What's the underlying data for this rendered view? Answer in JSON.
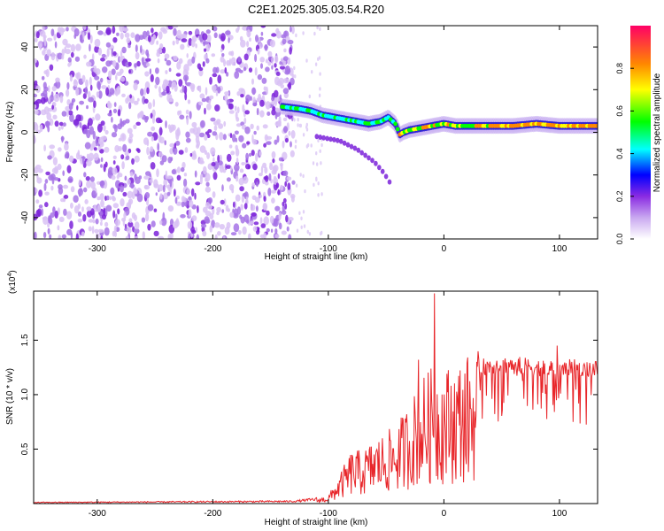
{
  "title": "C2E1.2025.305.03.54.R20",
  "chart_data": [
    {
      "type": "heatmap",
      "xlabel": "Height of straight line (km)",
      "ylabel": "Frequency (Hz)",
      "xlim": [
        -355,
        133
      ],
      "ylim": [
        -50,
        50
      ],
      "xticks": [
        -300,
        -200,
        -100,
        0,
        100
      ],
      "xticklabels": [
        "-300",
        "-200",
        "-100",
        "0",
        "100"
      ],
      "yticks": [
        -40,
        -20,
        0,
        20,
        40
      ],
      "yticklabels": [
        "-40",
        "-20",
        "0",
        "20",
        "40"
      ],
      "colorbar": {
        "label": "Normalized spectral amplitude",
        "range": [
          0,
          1
        ],
        "ticks": [
          0.0,
          0.2,
          0.4,
          0.6,
          0.8
        ],
        "ticklabels": [
          "0.0",
          "0.2",
          "0.4",
          "0.6",
          "0.8"
        ]
      },
      "trace": {
        "x": [
          -140,
          -125,
          -115,
          -105,
          -95,
          -85,
          -75,
          -65,
          -55,
          -48,
          -42,
          -38,
          -35,
          -30,
          -20,
          -10,
          0,
          10,
          20,
          40,
          60,
          80,
          100,
          120,
          133
        ],
        "y": [
          12,
          11,
          10,
          8,
          7,
          6,
          5,
          4,
          5,
          7,
          4,
          -1,
          0,
          1,
          2,
          3,
          4,
          3,
          3,
          3,
          3,
          4,
          3,
          3,
          3
        ]
      },
      "branch": {
        "x": [
          -110,
          -90,
          -75,
          -60,
          -52,
          -45
        ],
        "y": [
          -2,
          -4,
          -8,
          -14,
          -19,
          -25
        ]
      },
      "noise_region_x": [
        -355,
        -130
      ],
      "grid": false
    },
    {
      "type": "line",
      "xlabel": "Height of straight line (km)",
      "ylabel": "SNR (10 * v/v)",
      "y_multiplier": "(x10",
      "y_multiplier_exp": "4",
      "y_multiplier_close": ")",
      "xlim": [
        -355,
        133
      ],
      "ylim": [
        0,
        1.95
      ],
      "xticks": [
        -300,
        -200,
        -100,
        0,
        100
      ],
      "xticklabels": [
        "-300",
        "-200",
        "-100",
        "0",
        "100"
      ],
      "yticks": [
        0.5,
        1.0,
        1.5
      ],
      "yticklabels": [
        "0.5",
        "1.0",
        "1.5"
      ],
      "color": "#e8262a",
      "envelope_x": [
        -355,
        -130,
        -110,
        -100,
        -90,
        -80,
        -70,
        -60,
        -50,
        -40,
        -30,
        -20,
        -10,
        0,
        10,
        20,
        30,
        40,
        60,
        80,
        100,
        120,
        133
      ],
      "envelope_y": [
        0.01,
        0.02,
        0.04,
        0.07,
        0.25,
        0.45,
        0.45,
        0.55,
        0.6,
        0.68,
        0.85,
        1.05,
        1.15,
        1.15,
        1.18,
        1.25,
        1.3,
        1.32,
        1.33,
        1.3,
        1.3,
        1.3,
        1.28
      ],
      "spikes": [
        {
          "x": -8,
          "y": 1.93
        },
        {
          "x": -22,
          "y": 1.32
        },
        {
          "x": 98,
          "y": 1.45
        }
      ],
      "grid": false
    }
  ]
}
